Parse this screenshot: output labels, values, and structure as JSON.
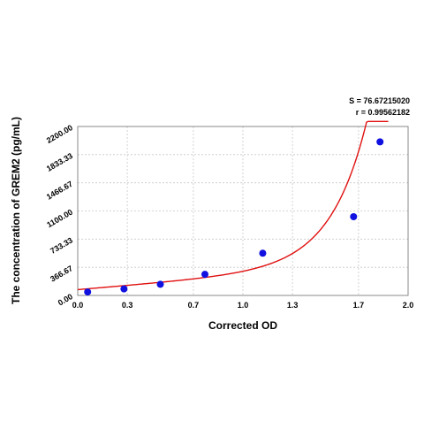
{
  "chart_data": {
    "type": "scatter",
    "title": "",
    "xlabel": "Corrected OD",
    "ylabel": "The concentration of GREM2 (pg/mL)",
    "xlim": [
      0.0,
      2.0
    ],
    "ylim": [
      0.0,
      2200.0
    ],
    "x_ticks": [
      {
        "value": 0.0,
        "label": "0.0"
      },
      {
        "value": 0.3,
        "label": "0.3"
      },
      {
        "value": 0.7,
        "label": "0.7"
      },
      {
        "value": 1.0,
        "label": "1.0"
      },
      {
        "value": 1.3,
        "label": "1.3"
      },
      {
        "value": 1.7,
        "label": "1.7"
      },
      {
        "value": 2.0,
        "label": "2.0"
      }
    ],
    "y_ticks": [
      {
        "value": 0.0,
        "label": "0.00"
      },
      {
        "value": 366.67,
        "label": "366.67"
      },
      {
        "value": 733.33,
        "label": "733.33"
      },
      {
        "value": 1100.0,
        "label": "1100.00"
      },
      {
        "value": 1466.67,
        "label": "1466.67"
      },
      {
        "value": 1833.33,
        "label": "1833.33"
      },
      {
        "value": 2200.0,
        "label": "2200.00"
      }
    ],
    "grid": true,
    "annotations": {
      "s_label": "S = 76.67215020",
      "r_label": "r = 0.99562182"
    },
    "series": [
      {
        "type": "scatter",
        "color": "#1010e0",
        "points": [
          {
            "x": 0.06,
            "y": 45
          },
          {
            "x": 0.28,
            "y": 85
          },
          {
            "x": 0.5,
            "y": 145
          },
          {
            "x": 0.77,
            "y": 275
          },
          {
            "x": 1.12,
            "y": 550
          },
          {
            "x": 1.67,
            "y": 1025
          },
          {
            "x": 1.83,
            "y": 2000
          }
        ]
      },
      {
        "type": "line",
        "color": "#e01010",
        "curve": {
          "form": "a + b*x + c*exp(d*x)",
          "a": 75,
          "b": 180,
          "c": 0.6,
          "d": 4.6
        },
        "x_range": [
          0.0,
          1.88
        ]
      }
    ]
  }
}
